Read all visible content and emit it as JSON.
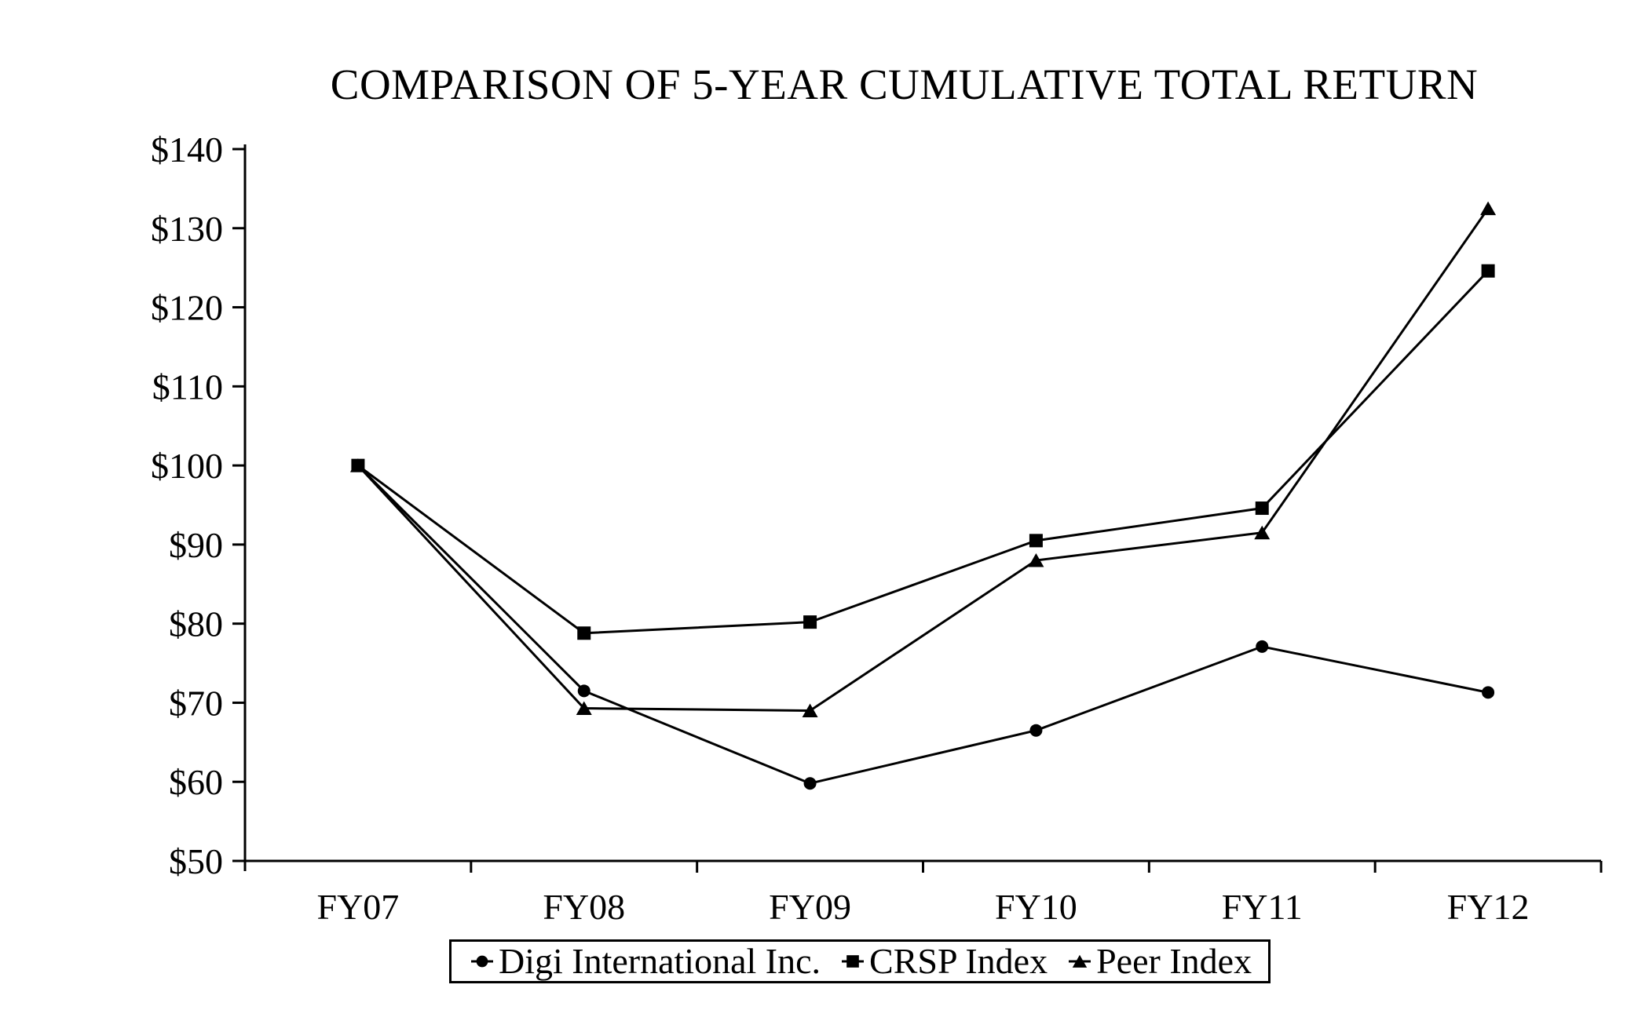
{
  "title": "COMPARISON OF 5-YEAR CUMULATIVE TOTAL RETURN",
  "chart_data": {
    "type": "line",
    "categories": [
      "FY07",
      "FY08",
      "FY09",
      "FY10",
      "FY11",
      "FY12"
    ],
    "series": [
      {
        "name": "Digi International Inc.",
        "marker": "circle",
        "values": [
          100,
          71.5,
          59.8,
          66.5,
          77.1,
          71.3
        ]
      },
      {
        "name": "CRSP Index",
        "marker": "square",
        "values": [
          100,
          78.8,
          80.2,
          90.5,
          94.6,
          124.6
        ]
      },
      {
        "name": "Peer Index",
        "marker": "triangle",
        "values": [
          100,
          69.3,
          69.0,
          88.0,
          91.5,
          132.5
        ]
      }
    ],
    "ylabel_prefix": "$",
    "ylim": [
      50,
      140
    ],
    "ytick_step": 10,
    "xlabel": "",
    "ylabel": "",
    "grid": false,
    "legend_position": "bottom",
    "line_color": "#000000",
    "marker_color": "#000000",
    "axis_color": "#000000",
    "background_color": "#ffffff"
  }
}
